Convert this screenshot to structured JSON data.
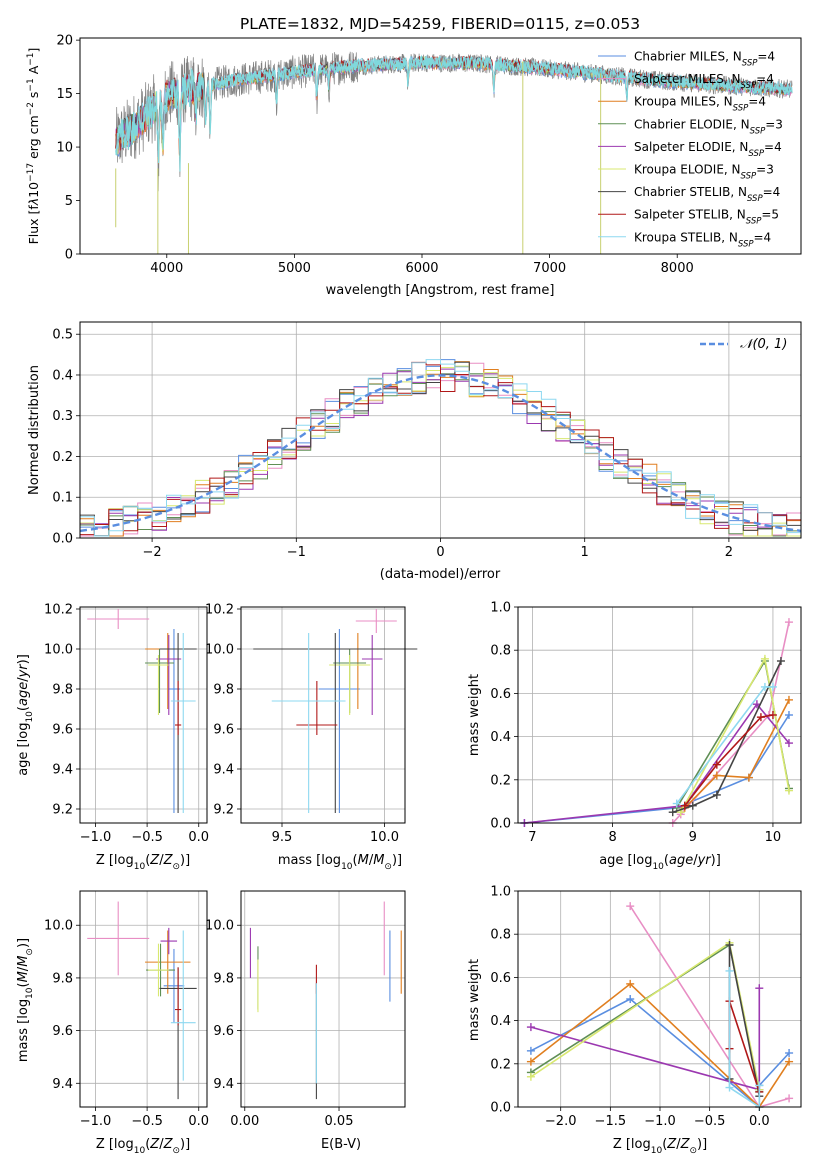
{
  "chart_data": [
    {
      "id": "spectrum",
      "type": "line",
      "title": "PLATE=1832, MJD=54259, FIBERID=0115, z=0.053",
      "xlabel": "wavelength [Angstrom, rest frame]",
      "ylabel": "Flux [fλ10⁻¹⁷ erg cm⁻² s⁻¹ A⁻¹]",
      "xlim": [
        3320,
        8970
      ],
      "ylim": [
        0,
        20.2
      ],
      "xticks": [
        4000,
        5000,
        6000,
        7000,
        8000
      ],
      "yticks": [
        0,
        5,
        10,
        15,
        20
      ],
      "grid": false,
      "legend_position": "top-right",
      "data_range": [
        3600,
        8900
      ],
      "continuum": [
        [
          3600,
          10.5
        ],
        [
          3800,
          12.5
        ],
        [
          4000,
          14.8
        ],
        [
          4200,
          15.5
        ],
        [
          4500,
          16.2
        ],
        [
          5000,
          17.0
        ],
        [
          5500,
          17.6
        ],
        [
          6000,
          17.9
        ],
        [
          6500,
          17.8
        ],
        [
          7000,
          17.3
        ],
        [
          7400,
          16.8
        ],
        [
          7800,
          16.3
        ],
        [
          8200,
          15.9
        ],
        [
          8600,
          15.6
        ],
        [
          8900,
          15.4
        ]
      ],
      "absorption": [
        [
          3934,
          6.0
        ],
        [
          3969,
          5.5
        ],
        [
          4102,
          7.0
        ],
        [
          4227,
          3.0
        ],
        [
          4305,
          3.5
        ],
        [
          4340,
          4.5
        ],
        [
          4861,
          2.5
        ],
        [
          5175,
          3.0
        ],
        [
          5270,
          2.0
        ],
        [
          5890,
          2.0
        ],
        [
          6563,
          2.5
        ],
        [
          7605,
          2.0
        ]
      ],
      "spikes": [
        [
          3600,
          8.0,
          2.5
        ],
        [
          3930,
          8.0,
          0.0
        ],
        [
          4170,
          8.5,
          0.0
        ],
        [
          6790,
          18.0,
          0.0
        ],
        [
          7400,
          16.9,
          0.0
        ]
      ],
      "observed_color": "#808080",
      "model_color": "#7fd8dc",
      "series": [
        {
          "name": "Chabrier MILES, N_SSP=4",
          "color": "#5a8ee0"
        },
        {
          "name": "Salpeter MILES, N_SSP=4",
          "color": "#e88ec4"
        },
        {
          "name": "Kroupa MILES, N_SSP=4",
          "color": "#e07f20"
        },
        {
          "name": "Chabrier ELODIE, N_SSP=3",
          "color": "#5f8f55"
        },
        {
          "name": "Salpeter ELODIE, N_SSP=4",
          "color": "#9b38b0"
        },
        {
          "name": "Kroupa ELODIE, N_SSP=3",
          "color": "#d8e870"
        },
        {
          "name": "Chabrier STELIB, N_SSP=4",
          "color": "#444444"
        },
        {
          "name": "Salpeter STELIB, N_SSP=5",
          "color": "#b01818"
        },
        {
          "name": "Kroupa STELIB, N_SSP=4",
          "color": "#8ed8f0"
        }
      ]
    },
    {
      "id": "residuals",
      "type": "bar",
      "title": "",
      "xlabel": "(data-model)/error",
      "ylabel": "Normed distribution",
      "xlim": [
        -2.5,
        2.5
      ],
      "ylim": [
        0,
        0.53
      ],
      "xticks": [
        -2,
        -1,
        0,
        1,
        2
      ],
      "yticks": [
        0.0,
        0.1,
        0.2,
        0.3,
        0.4,
        0.5
      ],
      "grid": true,
      "bin_width": 0.1,
      "reference_curve": {
        "name": "N(0, 1)",
        "mean": 0,
        "std": 1,
        "color": "#5a8ee0"
      },
      "legend_position": "top-right",
      "series_colors": [
        "#5a8ee0",
        "#e88ec4",
        "#e07f20",
        "#5f8f55",
        "#9b38b0",
        "#d8e870",
        "#444444",
        "#b01818",
        "#8ed8f0"
      ]
    },
    {
      "id": "age-vs-Z",
      "type": "scatter",
      "xlabel": "Z [log10(Z/Z⊙)]",
      "ylabel": "age  [log10(age/yr)]",
      "xlim": [
        -1.15,
        0.08
      ],
      "ylim": [
        9.13,
        10.21
      ],
      "xticks": [
        -1.0,
        -0.5,
        0.0
      ],
      "yticks": [
        9.2,
        9.4,
        9.6,
        9.8,
        10.0,
        10.2
      ],
      "grid": true,
      "points": [
        {
          "x": -0.24,
          "y": 9.8,
          "xerr": 0.06,
          "yerr": [
            0.62,
            0.3
          ],
          "color": "#5a8ee0"
        },
        {
          "x": -0.78,
          "y": 10.15,
          "xerr": 0.3,
          "yerr": [
            0.05,
            0.05
          ],
          "color": "#e88ec4"
        },
        {
          "x": -0.3,
          "y": 10.0,
          "xerr": 0.22,
          "yerr": [
            0.3,
            0.08
          ],
          "color": "#e07f20"
        },
        {
          "x": -0.38,
          "y": 9.93,
          "xerr": 0.14,
          "yerr": [
            0.25,
            0.07
          ],
          "color": "#5f8f55"
        },
        {
          "x": -0.29,
          "y": 9.95,
          "xerr": 0.12,
          "yerr": [
            0.28,
            0.12
          ],
          "color": "#9b38b0"
        },
        {
          "x": -0.39,
          "y": 9.92,
          "xerr": 0.1,
          "yerr": [
            0.25,
            0.05
          ],
          "color": "#d8e870"
        },
        {
          "x": -0.2,
          "y": 10.0,
          "xerr": 0.18,
          "yerr": [
            0.82,
            0.08
          ],
          "color": "#444444"
        },
        {
          "x": -0.2,
          "y": 9.62,
          "xerr": 0.03,
          "yerr": [
            0.05,
            0.22
          ],
          "color": "#b01818"
        },
        {
          "x": -0.15,
          "y": 9.74,
          "xerr": 0.12,
          "yerr": [
            0.56,
            0.34
          ],
          "color": "#8ed8f0"
        }
      ]
    },
    {
      "id": "age-vs-mass",
      "type": "scatter",
      "xlabel": "mass [log10(M/M⊙)]",
      "ylabel": "",
      "xlim": [
        9.3,
        10.1
      ],
      "ylim": [
        9.13,
        10.21
      ],
      "xticks": [
        9.5,
        10.0
      ],
      "yticks": [
        9.2,
        9.4,
        9.6,
        9.8,
        10.0,
        10.2
      ],
      "grid": true,
      "points": [
        {
          "x": 9.78,
          "y": 9.8,
          "xerr": 0.1,
          "yerr": [
            0.62,
            0.3
          ],
          "color": "#5a8ee0"
        },
        {
          "x": 9.96,
          "y": 10.14,
          "xerr": 0.1,
          "yerr": [
            0.06,
            0.06
          ],
          "color": "#e88ec4"
        },
        {
          "x": 9.87,
          "y": 10.0,
          "xerr": 0.12,
          "yerr": [
            0.3,
            0.08
          ],
          "color": "#e07f20"
        },
        {
          "x": 9.83,
          "y": 9.93,
          "xerr": 0.08,
          "yerr": [
            0.25,
            0.07
          ],
          "color": "#5f8f55"
        },
        {
          "x": 9.94,
          "y": 9.95,
          "xerr": 0.05,
          "yerr": [
            0.28,
            0.12
          ],
          "color": "#9b38b0"
        },
        {
          "x": 9.83,
          "y": 9.92,
          "xerr": 0.1,
          "yerr": [
            0.25,
            0.05
          ],
          "color": "#d8e870"
        },
        {
          "x": 9.76,
          "y": 10.0,
          "xerr": 0.4,
          "yerr": [
            0.82,
            0.08
          ],
          "color": "#444444"
        },
        {
          "x": 9.67,
          "y": 9.62,
          "xerr": 0.1,
          "yerr": [
            0.05,
            0.22
          ],
          "color": "#b01818"
        },
        {
          "x": 9.63,
          "y": 9.74,
          "xerr": 0.18,
          "yerr": [
            0.56,
            0.34
          ],
          "color": "#8ed8f0"
        }
      ]
    },
    {
      "id": "weight-vs-age",
      "type": "line",
      "xlabel": "age  [log10(age/yr)]",
      "ylabel": "mass weight",
      "xlim": [
        6.82,
        10.35
      ],
      "ylim": [
        0,
        1.0
      ],
      "xticks": [
        7,
        8,
        9,
        10
      ],
      "yticks": [
        0.0,
        0.2,
        0.4,
        0.6,
        0.8,
        1.0
      ],
      "grid": true,
      "series": [
        {
          "color": "#5a8ee0",
          "x": [
            6.9,
            8.8,
            9.7,
            10.2
          ],
          "y": [
            0.0,
            0.07,
            0.21,
            0.5
          ]
        },
        {
          "color": "#e88ec4",
          "x": [
            8.75,
            8.85,
            9.95,
            10.2
          ],
          "y": [
            0.0,
            0.04,
            0.5,
            0.93
          ]
        },
        {
          "color": "#e07f20",
          "x": [
            8.9,
            9.3,
            9.7,
            10.2
          ],
          "y": [
            0.07,
            0.22,
            0.21,
            0.57
          ]
        },
        {
          "color": "#5f8f55",
          "x": [
            8.8,
            9.9,
            10.2
          ],
          "y": [
            0.07,
            0.75,
            0.16
          ]
        },
        {
          "color": "#9b38b0",
          "x": [
            6.9,
            8.9,
            9.8,
            10.2
          ],
          "y": [
            0.0,
            0.08,
            0.55,
            0.37
          ]
        },
        {
          "color": "#d8e870",
          "x": [
            8.85,
            9.9,
            10.2
          ],
          "y": [
            0.05,
            0.76,
            0.15
          ]
        },
        {
          "color": "#444444",
          "x": [
            8.75,
            9.0,
            9.3,
            10.1
          ],
          "y": [
            0.05,
            0.08,
            0.13,
            0.75
          ]
        },
        {
          "color": "#b01818",
          "x": [
            8.9,
            9.3,
            9.85,
            10.0
          ],
          "y": [
            0.08,
            0.27,
            0.49,
            0.5
          ]
        },
        {
          "color": "#8ed8f0",
          "x": [
            8.8,
            9.9,
            10.0
          ],
          "y": [
            0.09,
            0.63,
            0.63
          ]
        }
      ]
    },
    {
      "id": "mass-vs-Z",
      "type": "scatter",
      "xlabel": "Z [log10(Z/Z⊙)]",
      "ylabel": "mass [log10(M/M⊙)]",
      "xlim": [
        -1.15,
        0.08
      ],
      "ylim": [
        9.31,
        10.13
      ],
      "xticks": [
        -1.0,
        -0.5,
        0.0
      ],
      "yticks": [
        9.4,
        9.6,
        9.8,
        10.0
      ],
      "grid": true,
      "points": [
        {
          "x": -0.24,
          "y": 9.77,
          "xerr": 0.1,
          "yerr": [
            0.14,
            0.14
          ],
          "color": "#5a8ee0"
        },
        {
          "x": -0.78,
          "y": 9.95,
          "xerr": 0.3,
          "yerr": [
            0.14,
            0.14
          ],
          "color": "#e88ec4"
        },
        {
          "x": -0.3,
          "y": 9.86,
          "xerr": 0.22,
          "yerr": [
            0.12,
            0.12
          ],
          "color": "#e07f20"
        },
        {
          "x": -0.37,
          "y": 9.83,
          "xerr": 0.14,
          "yerr": [
            0.1,
            0.1
          ],
          "color": "#5f8f55"
        },
        {
          "x": -0.29,
          "y": 9.94,
          "xerr": 0.08,
          "yerr": [
            0.05,
            0.05
          ],
          "color": "#9b38b0"
        },
        {
          "x": -0.39,
          "y": 9.83,
          "xerr": 0.1,
          "yerr": [
            0.1,
            0.1
          ],
          "color": "#d8e870"
        },
        {
          "x": -0.2,
          "y": 9.76,
          "xerr": 0.18,
          "yerr": [
            0.42,
            0.08
          ],
          "color": "#444444"
        },
        {
          "x": -0.2,
          "y": 9.68,
          "xerr": 0.03,
          "yerr": [
            0.06,
            0.16
          ],
          "color": "#b01818"
        },
        {
          "x": -0.15,
          "y": 9.63,
          "xerr": 0.12,
          "yerr": [
            0.22,
            0.35
          ],
          "color": "#8ed8f0"
        }
      ]
    },
    {
      "id": "mass-vs-EBV",
      "type": "scatter",
      "xlabel": "E(B-V)",
      "ylabel": "",
      "xlim": [
        -0.002,
        0.085
      ],
      "ylim": [
        9.31,
        10.13
      ],
      "xticks": [
        0.0,
        0.05
      ],
      "yticks": [
        9.4,
        9.6,
        9.8,
        10.0
      ],
      "grid": true,
      "points": [
        {
          "x": 0.077,
          "y": 9.84,
          "yerr": [
            0.13,
            0.14
          ],
          "color": "#5a8ee0"
        },
        {
          "x": 0.074,
          "y": 9.95,
          "yerr": [
            0.14,
            0.14
          ],
          "color": "#e88ec4"
        },
        {
          "x": 0.083,
          "y": 9.86,
          "yerr": [
            0.12,
            0.12
          ],
          "color": "#e07f20"
        },
        {
          "x": 0.007,
          "y": 9.8,
          "yerr": [
            0.12,
            0.12
          ],
          "color": "#5f8f55"
        },
        {
          "x": 0.003,
          "y": 9.89,
          "yerr": [
            0.09,
            0.1
          ],
          "color": "#9b38b0"
        },
        {
          "x": 0.007,
          "y": 9.77,
          "yerr": [
            0.1,
            0.1
          ],
          "color": "#d8e870"
        },
        {
          "x": 0.038,
          "y": 9.6,
          "yerr": [
            0.26,
            0.18
          ],
          "color": "#444444"
        },
        {
          "x": 0.038,
          "y": 9.79,
          "yerr": [
            0.05,
            0.06
          ],
          "color": "#b01818"
        },
        {
          "x": 0.038,
          "y": 9.53,
          "yerr": [
            0.13,
            0.25
          ],
          "color": "#8ed8f0"
        }
      ]
    },
    {
      "id": "weight-vs-Z",
      "type": "line",
      "xlabel": "Z [log10(Z/Z⊙)]",
      "ylabel": "mass weight",
      "xlim": [
        -2.43,
        0.42
      ],
      "ylim": [
        0,
        1.0
      ],
      "xticks": [
        -2.0,
        -1.5,
        -1.0,
        -0.5,
        0.0
      ],
      "yticks": [
        0.0,
        0.2,
        0.4,
        0.6,
        0.8,
        1.0
      ],
      "grid": true,
      "series": [
        {
          "color": "#5a8ee0",
          "x": [
            -2.3,
            -1.3,
            0.0,
            0.0,
            0.3
          ],
          "y": [
            0.26,
            0.5,
            0.0,
            0.1,
            0.25
          ]
        },
        {
          "color": "#e88ec4",
          "x": [
            -1.3,
            0.0,
            0.3
          ],
          "y": [
            0.93,
            0.0,
            0.04
          ]
        },
        {
          "color": "#e07f20",
          "x": [
            -2.3,
            -1.3,
            0.0,
            0.3
          ],
          "y": [
            0.21,
            0.57,
            0.0,
            0.21
          ]
        },
        {
          "color": "#5f8f55",
          "x": [
            -2.3,
            -0.3,
            0.0
          ],
          "y": [
            0.16,
            0.75,
            0.07
          ]
        },
        {
          "color": "#9b38b0",
          "x": [
            -2.3,
            0.0,
            0.0
          ],
          "y": [
            0.37,
            0.08,
            0.55
          ]
        },
        {
          "color": "#d8e870",
          "x": [
            -2.3,
            -0.3,
            0.0
          ],
          "y": [
            0.14,
            0.76,
            0.08
          ]
        },
        {
          "color": "#444444",
          "x": [
            -0.3,
            -0.3,
            0.0
          ],
          "y": [
            0.13,
            0.75,
            0.05
          ]
        },
        {
          "color": "#b01818",
          "x": [
            -0.3,
            -0.3,
            0.0
          ],
          "y": [
            0.27,
            0.49,
            0.07
          ]
        },
        {
          "color": "#8ed8f0",
          "x": [
            -0.3,
            -0.3,
            0.0,
            0.0
          ],
          "y": [
            0.63,
            0.09,
            0.0,
            0.1
          ]
        }
      ]
    }
  ]
}
